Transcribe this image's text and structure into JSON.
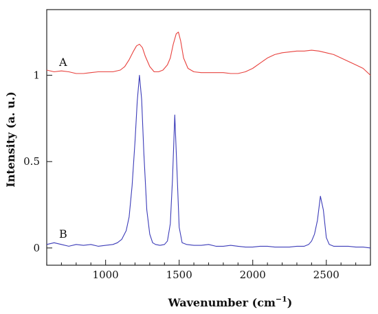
{
  "chart_data": {
    "type": "line",
    "xlabel": "Wavenumber (cm",
    "xlabel_sup": "−1",
    "xlabel_close": ")",
    "ylabel": "Intensity (a. u.)",
    "xlim": [
      600,
      2800
    ],
    "ylim": [
      -0.1,
      1.38
    ],
    "xticks": [
      1000,
      1500,
      2000,
      2500
    ],
    "xtick_labels": [
      "1000",
      "1500",
      "2000",
      "2500"
    ],
    "xminor_step": 100,
    "yticks": [
      0,
      0.5,
      1
    ],
    "ytick_labels": [
      "0",
      "0.5",
      "1"
    ],
    "series": [
      {
        "label": "A",
        "color": "#e8403c",
        "x": [
          600,
          650,
          700,
          750,
          800,
          850,
          900,
          950,
          1000,
          1050,
          1100,
          1130,
          1160,
          1190,
          1210,
          1230,
          1250,
          1270,
          1300,
          1330,
          1360,
          1390,
          1420,
          1440,
          1460,
          1480,
          1495,
          1510,
          1530,
          1560,
          1600,
          1650,
          1700,
          1750,
          1800,
          1850,
          1900,
          1950,
          2000,
          2050,
          2100,
          2150,
          2200,
          2250,
          2300,
          2350,
          2400,
          2450,
          2500,
          2550,
          2600,
          2650,
          2700,
          2750,
          2800
        ],
        "y": [
          1.03,
          1.02,
          1.025,
          1.02,
          1.01,
          1.01,
          1.015,
          1.02,
          1.02,
          1.02,
          1.03,
          1.05,
          1.09,
          1.14,
          1.17,
          1.18,
          1.16,
          1.11,
          1.05,
          1.02,
          1.02,
          1.03,
          1.06,
          1.1,
          1.18,
          1.24,
          1.25,
          1.2,
          1.1,
          1.04,
          1.02,
          1.015,
          1.015,
          1.015,
          1.015,
          1.01,
          1.01,
          1.02,
          1.04,
          1.07,
          1.1,
          1.12,
          1.13,
          1.135,
          1.14,
          1.14,
          1.145,
          1.14,
          1.13,
          1.12,
          1.1,
          1.08,
          1.06,
          1.04,
          1.0
        ]
      },
      {
        "label": "B",
        "color": "#3a3ab8",
        "x": [
          600,
          650,
          700,
          750,
          800,
          850,
          900,
          950,
          1000,
          1050,
          1080,
          1110,
          1140,
          1160,
          1180,
          1200,
          1215,
          1230,
          1245,
          1260,
          1280,
          1300,
          1320,
          1340,
          1370,
          1400,
          1420,
          1440,
          1455,
          1470,
          1485,
          1500,
          1520,
          1550,
          1600,
          1650,
          1700,
          1750,
          1800,
          1850,
          1900,
          1950,
          2000,
          2050,
          2100,
          2150,
          2200,
          2250,
          2300,
          2350,
          2380,
          2400,
          2420,
          2440,
          2460,
          2480,
          2500,
          2520,
          2550,
          2600,
          2650,
          2700,
          2750,
          2800
        ],
        "y": [
          0.02,
          0.03,
          0.02,
          0.01,
          0.02,
          0.015,
          0.02,
          0.01,
          0.015,
          0.02,
          0.03,
          0.05,
          0.1,
          0.18,
          0.36,
          0.62,
          0.85,
          1.0,
          0.86,
          0.55,
          0.22,
          0.08,
          0.03,
          0.02,
          0.015,
          0.02,
          0.04,
          0.14,
          0.4,
          0.77,
          0.45,
          0.12,
          0.03,
          0.02,
          0.015,
          0.015,
          0.02,
          0.01,
          0.01,
          0.015,
          0.01,
          0.005,
          0.005,
          0.01,
          0.01,
          0.005,
          0.005,
          0.005,
          0.01,
          0.01,
          0.02,
          0.04,
          0.08,
          0.16,
          0.3,
          0.22,
          0.06,
          0.02,
          0.01,
          0.01,
          0.01,
          0.005,
          0.005,
          0.0
        ]
      }
    ]
  }
}
